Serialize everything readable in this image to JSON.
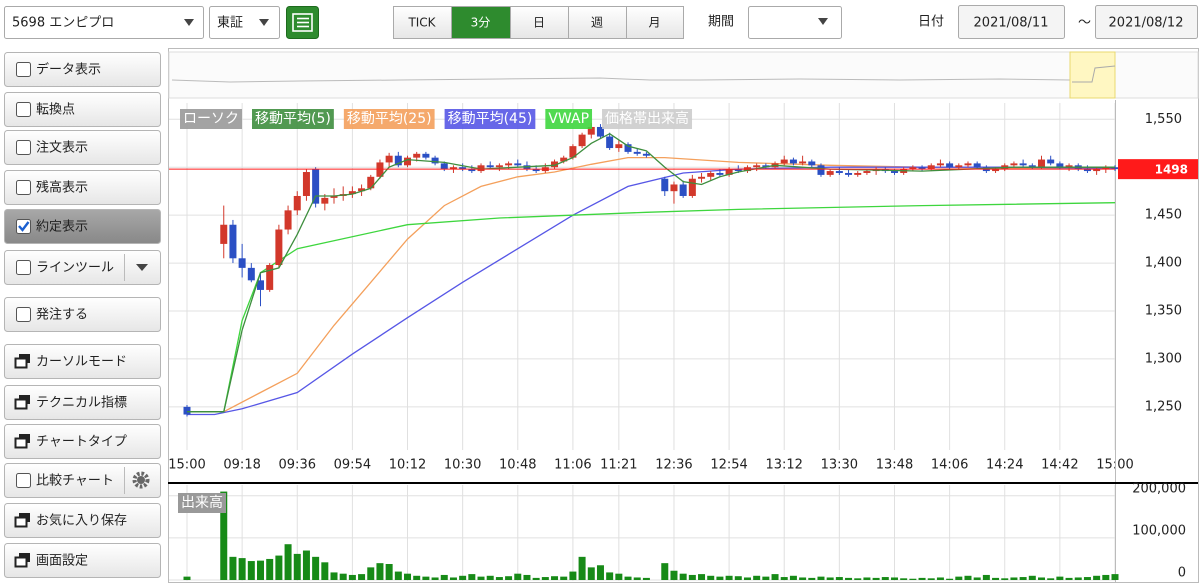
{
  "toolbar": {
    "symbol": "5698 エンピプロ",
    "market": "東証",
    "periods": [
      "TICK",
      "3分",
      "日",
      "週",
      "月"
    ],
    "active_period": 1,
    "range_label": "期間",
    "date_label": "日付",
    "date_from": "2021/08/11",
    "date_separator": "～",
    "date_to": "2021/08/12"
  },
  "sidebar": [
    {
      "label": "データ表示",
      "kind": "check",
      "checked": false
    },
    {
      "label": "転換点",
      "kind": "check",
      "checked": false
    },
    {
      "label": "注文表示",
      "kind": "check",
      "checked": false
    },
    {
      "label": "残高表示",
      "kind": "check",
      "checked": false
    },
    {
      "label": "約定表示",
      "kind": "check",
      "checked": true
    },
    {
      "label": "ラインツール",
      "kind": "check",
      "checked": false,
      "menu": "dropdown"
    },
    {
      "label": "発注する",
      "kind": "check",
      "checked": false
    },
    {
      "label": "カーソルモード",
      "kind": "window"
    },
    {
      "label": "テクニカル指標",
      "kind": "window"
    },
    {
      "label": "チャートタイプ",
      "kind": "window"
    },
    {
      "label": "比較チャート",
      "kind": "check",
      "checked": false,
      "menu": "gear"
    },
    {
      "label": "お気に入り保存",
      "kind": "window"
    },
    {
      "label": "画面設定",
      "kind": "window"
    }
  ],
  "chart_data": [
    {
      "type": "candlestick",
      "categories": [
        "15:00",
        null,
        null,
        null,
        null,
        null,
        "09:18",
        null,
        null,
        null,
        null,
        null,
        "09:36",
        null,
        null,
        null,
        null,
        null,
        "09:54",
        null,
        null,
        null,
        null,
        null,
        "10:12",
        null,
        null,
        null,
        null,
        null,
        "10:30",
        null,
        null,
        null,
        null,
        null,
        "10:48",
        null,
        null,
        null,
        null,
        null,
        "11:06",
        null,
        null,
        null,
        null,
        "11:21",
        null,
        null,
        null,
        null,
        null,
        "12:36",
        null,
        null,
        null,
        null,
        null,
        "12:54",
        null,
        null,
        null,
        null,
        null,
        "13:12",
        null,
        null,
        null,
        null,
        null,
        "13:30",
        null,
        null,
        null,
        null,
        null,
        "13:48",
        null,
        null,
        null,
        null,
        null,
        "14:06",
        null,
        null,
        null,
        null,
        null,
        "14:24",
        null,
        null,
        null,
        null,
        null,
        "14:42",
        null,
        null,
        null,
        null,
        null,
        "15:00"
      ],
      "ylim": [
        1205,
        1567
      ],
      "yticks": [
        {
          "value": 1250,
          "label": "1,250"
        },
        {
          "value": 1300,
          "label": "1,300"
        },
        {
          "value": 1350,
          "label": "1,350"
        },
        {
          "value": 1400,
          "label": "1,400"
        },
        {
          "value": 1450,
          "label": "1,450"
        },
        {
          "value": 1500,
          "label": "1,500"
        },
        {
          "value": 1550,
          "label": "1,550"
        }
      ],
      "grid": true,
      "last_price": {
        "value": 1498,
        "color": "#ff1a1a"
      },
      "series": [
        {
          "name": "ローソク",
          "color": "#999999",
          "up_color": "#d2382b",
          "down_color": "#2b4fc4",
          "open": [
            1250,
            null,
            null,
            null,
            1420,
            1440,
            1405,
            1395,
            1382,
            1372,
            1398,
            1435,
            1455,
            1470,
            1498,
            1462,
            1468,
            1470,
            1472,
            1475,
            1478,
            1490,
            1505,
            1512,
            1502,
            1510,
            1514,
            1510,
            1504,
            1498,
            1500,
            1498,
            1496,
            1502,
            1500,
            1502,
            1504,
            1502,
            1498,
            1496,
            1500,
            1506,
            1510,
            1522,
            1534,
            1542,
            1532,
            1520,
            1524,
            1516,
            1514,
            null,
            1488,
            1475,
            1482,
            1470,
            1488,
            1490,
            1494,
            1492,
            1498,
            1496,
            1500,
            1502,
            1500,
            1504,
            1508,
            1504,
            1506,
            1502,
            1492,
            1496,
            1494,
            1492,
            1494,
            1496,
            1498,
            1496,
            1494,
            1498,
            1500,
            1498,
            1502,
            1504,
            1500,
            1502,
            1504,
            1500,
            1496,
            1498,
            1502,
            1504,
            1502,
            1500,
            1508,
            1504,
            1500,
            1502,
            1498,
            1496,
            1498,
            1500
          ],
          "high": [
            1252,
            null,
            null,
            null,
            1460,
            1445,
            1420,
            1400,
            1390,
            1400,
            1440,
            1460,
            1475,
            1498,
            1500,
            1472,
            1478,
            1480,
            1480,
            1482,
            1492,
            1508,
            1515,
            1516,
            1512,
            1516,
            1516,
            1512,
            1506,
            1502,
            1504,
            1502,
            1504,
            1506,
            1504,
            1506,
            1508,
            1506,
            1502,
            1504,
            1508,
            1512,
            1524,
            1536,
            1546,
            1545,
            1536,
            1528,
            1526,
            1520,
            1516,
            null,
            1490,
            1485,
            1486,
            1492,
            1494,
            1496,
            1498,
            1500,
            1502,
            1502,
            1504,
            1504,
            1506,
            1512,
            1510,
            1512,
            1508,
            1504,
            1498,
            1500,
            1498,
            1496,
            1498,
            1500,
            1500,
            1498,
            1500,
            1502,
            1502,
            1504,
            1508,
            1506,
            1504,
            1506,
            1506,
            1502,
            1500,
            1504,
            1506,
            1508,
            1504,
            1512,
            1512,
            1506,
            1504,
            1504,
            1502,
            1500,
            1502,
            1502
          ],
          "low": [
            1240,
            null,
            null,
            null,
            1405,
            1400,
            1385,
            1380,
            1355,
            1370,
            1395,
            1430,
            1450,
            1465,
            1458,
            1455,
            1462,
            1465,
            1468,
            1470,
            1476,
            1488,
            1500,
            1500,
            1500,
            1506,
            1508,
            1502,
            1496,
            1494,
            1496,
            1494,
            1494,
            1498,
            1496,
            1498,
            1500,
            1496,
            1494,
            1494,
            1498,
            1504,
            1508,
            1520,
            1530,
            1530,
            1518,
            1516,
            1514,
            1512,
            1510,
            null,
            1470,
            1462,
            1468,
            1468,
            1484,
            1486,
            1490,
            1490,
            1494,
            1494,
            1496,
            1498,
            1498,
            1502,
            1502,
            1502,
            1500,
            1490,
            1490,
            1492,
            1490,
            1490,
            1492,
            1492,
            1494,
            1492,
            1492,
            1496,
            1496,
            1496,
            1500,
            1498,
            1498,
            1500,
            1498,
            1494,
            1494,
            1496,
            1500,
            1500,
            1498,
            1498,
            1502,
            1498,
            1496,
            1496,
            1494,
            1492,
            1494,
            1496
          ],
          "close": [
            1242,
            null,
            null,
            null,
            1440,
            1405,
            1395,
            1382,
            1372,
            1398,
            1435,
            1455,
            1470,
            1495,
            1462,
            1468,
            1470,
            1472,
            1475,
            1478,
            1490,
            1505,
            1512,
            1502,
            1510,
            1514,
            1510,
            1504,
            1498,
            1500,
            1498,
            1496,
            1502,
            1500,
            1502,
            1504,
            1502,
            1498,
            1496,
            1500,
            1506,
            1510,
            1522,
            1534,
            1542,
            1532,
            1520,
            1524,
            1516,
            1514,
            1512,
            null,
            1475,
            1482,
            1470,
            1488,
            1490,
            1494,
            1492,
            1498,
            1496,
            1500,
            1502,
            1500,
            1504,
            1508,
            1504,
            1506,
            1502,
            1492,
            1496,
            1494,
            1492,
            1494,
            1496,
            1498,
            1496,
            1494,
            1498,
            1500,
            1498,
            1502,
            1504,
            1500,
            1502,
            1504,
            1500,
            1496,
            1498,
            1502,
            1504,
            1502,
            1500,
            1508,
            1504,
            1500,
            1502,
            1498,
            1496,
            1498,
            1500,
            1498
          ]
        },
        {
          "name": "移動平均(5)",
          "color": "#3e8e3e",
          "x": [
            0,
            4,
            6,
            8,
            10,
            12,
            14,
            16,
            18,
            20,
            22,
            24,
            28,
            32,
            36,
            40,
            42,
            44,
            46,
            48,
            50,
            52,
            54,
            56,
            58,
            60,
            64,
            70,
            80,
            90,
            101
          ],
          "values": [
            1245,
            1245,
            1330,
            1390,
            1395,
            1430,
            1470,
            1470,
            1472,
            1478,
            1500,
            1508,
            1505,
            1498,
            1500,
            1502,
            1510,
            1525,
            1535,
            1522,
            1517,
            1500,
            1485,
            1482,
            1490,
            1495,
            1502,
            1498,
            1496,
            1500,
            1500
          ]
        },
        {
          "name": "移動平均(25)",
          "color": "#f4a05c",
          "x": [
            0,
            4,
            8,
            12,
            16,
            20,
            24,
            28,
            32,
            36,
            40,
            44,
            48,
            52,
            60,
            70,
            80,
            90,
            101
          ],
          "values": [
            1245,
            1245,
            1265,
            1285,
            1335,
            1380,
            1425,
            1460,
            1480,
            1490,
            1495,
            1503,
            1510,
            1510,
            1505,
            1502,
            1500,
            1499,
            1499
          ]
        },
        {
          "name": "移動平均(45)",
          "color": "#5757e6",
          "x": [
            0,
            3,
            6,
            12,
            18,
            24,
            30,
            36,
            42,
            48,
            54,
            60,
            70,
            80,
            90,
            101
          ],
          "values": [
            1242,
            1242,
            1248,
            1265,
            1305,
            1343,
            1380,
            1415,
            1450,
            1480,
            1494,
            1498,
            1500,
            1500,
            1500,
            1499
          ]
        },
        {
          "name": "VWAP",
          "color": "#3ed63e",
          "x": [
            0,
            4,
            6,
            8,
            12,
            24,
            34,
            50,
            60,
            80,
            101
          ],
          "values": [
            1245,
            1245,
            1340,
            1390,
            1415,
            1440,
            1447,
            1453,
            1456,
            1460,
            1463
          ]
        },
        {
          "name": "価格帯出来高",
          "color": "#cccccc"
        }
      ]
    },
    {
      "type": "bar",
      "title": "出来高",
      "color": "#178a17",
      "ylim": [
        0,
        228000
      ],
      "yticks": [
        0,
        {
          "value": 100000,
          "label": "100,000"
        },
        {
          "value": 200000,
          "label": "200,000"
        }
      ],
      "values": [
        8000,
        null,
        null,
        null,
        210000,
        55000,
        52000,
        45000,
        46000,
        50000,
        58000,
        85000,
        62000,
        70000,
        55000,
        42000,
        18000,
        15000,
        12000,
        14000,
        30000,
        40000,
        38000,
        20000,
        15000,
        10000,
        8000,
        6000,
        12000,
        6000,
        10000,
        14000,
        8000,
        10000,
        7000,
        9000,
        15000,
        12000,
        5000,
        7000,
        9000,
        8000,
        20000,
        55000,
        30000,
        35000,
        18000,
        15000,
        8000,
        6000,
        5000,
        null,
        40000,
        22000,
        15000,
        12000,
        14000,
        10000,
        8000,
        10000,
        9000,
        6000,
        10000,
        8000,
        14000,
        7000,
        10000,
        6000,
        5000,
        8000,
        6000,
        7000,
        5000,
        4000,
        6000,
        5000,
        7000,
        6000,
        4000,
        3000,
        5000,
        4000,
        6000,
        3000,
        8000,
        10000,
        6000,
        12000,
        5000,
        4000,
        6000,
        7000,
        10000,
        6000,
        4000,
        8000,
        5000,
        6000,
        7000,
        10000,
        12000,
        14000
      ]
    }
  ]
}
